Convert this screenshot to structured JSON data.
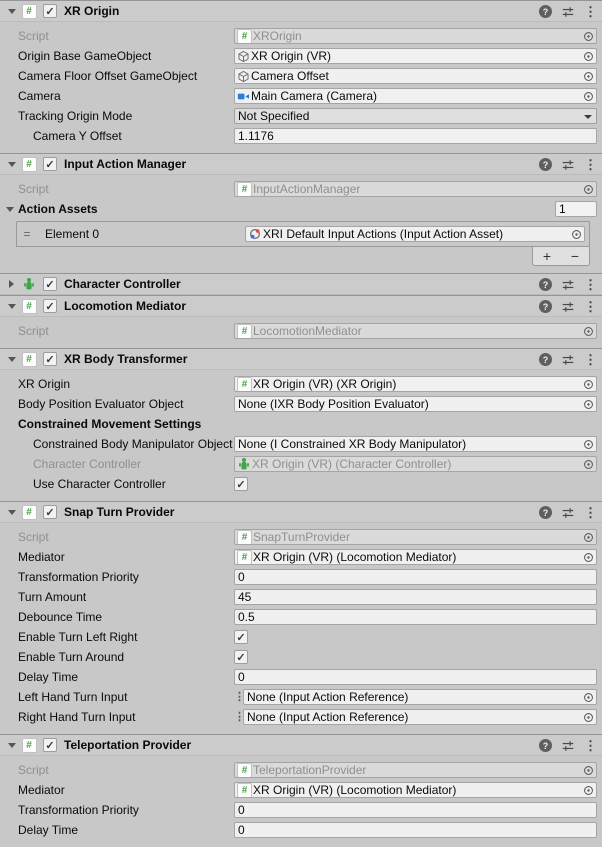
{
  "palette": {
    "background": "#c8c8c8",
    "header": "#cbcbcb",
    "field": "#f0f0f0",
    "script_green": "#4c9e4c",
    "camera_blue": "#2a7dd1",
    "character_green": "#3fa548"
  },
  "header_actions": {
    "help": "?",
    "presets": "presets",
    "menu": "⋮"
  },
  "components": [
    {
      "title": "XR Origin",
      "icon": "script",
      "expanded": true,
      "enabled": true,
      "rows": [
        {
          "type": "object",
          "label": "Script",
          "value": "XROrigin",
          "icon": "script",
          "disabled": true
        },
        {
          "type": "object",
          "label": "Origin Base GameObject",
          "value": "XR Origin (VR)",
          "icon": "gameobject"
        },
        {
          "type": "object",
          "label": "Camera Floor Offset GameObject",
          "value": "Camera Offset",
          "icon": "gameobject"
        },
        {
          "type": "object",
          "label": "Camera",
          "value": "Main Camera (Camera)",
          "icon": "camera"
        },
        {
          "type": "dropdown",
          "label": "Tracking Origin Mode",
          "value": "Not Specified"
        },
        {
          "type": "text",
          "label": "Camera Y Offset",
          "value": "1.1176",
          "indent": true
        }
      ]
    },
    {
      "title": "Input Action Manager",
      "icon": "script",
      "expanded": true,
      "enabled": true,
      "rows": [
        {
          "type": "object",
          "label": "Script",
          "value": "InputActionManager",
          "icon": "script",
          "disabled": true
        },
        {
          "type": "array-header",
          "label": "Action Assets",
          "size": "1"
        },
        {
          "type": "list-element",
          "label": "Element 0",
          "value": "XRI Default Input Actions (Input Action Asset)",
          "icon": "input-asset",
          "handle": "="
        },
        {
          "type": "list-footer",
          "add": "+",
          "remove": "−"
        }
      ]
    },
    {
      "title": "Character Controller",
      "icon": "character",
      "expanded": false,
      "enabled": true,
      "rows": []
    },
    {
      "title": "Locomotion Mediator",
      "icon": "script",
      "expanded": true,
      "enabled": true,
      "rows": [
        {
          "type": "object",
          "label": "Script",
          "value": "LocomotionMediator",
          "icon": "script",
          "disabled": true
        }
      ]
    },
    {
      "title": "XR Body Transformer",
      "icon": "script",
      "expanded": true,
      "enabled": true,
      "rows": [
        {
          "type": "object",
          "label": "XR Origin",
          "value": "XR Origin (VR) (XR Origin)",
          "icon": "script"
        },
        {
          "type": "object",
          "label": "Body Position Evaluator Object",
          "value": "None (IXR Body Position Evaluator)"
        },
        {
          "type": "heading",
          "label": "Constrained Movement Settings"
        },
        {
          "type": "object",
          "label": "Constrained Body Manipulator Object",
          "value": "None (I Constrained XR Body Manipulator)",
          "indent": true
        },
        {
          "type": "object",
          "label": "Character Controller",
          "value": "XR Origin (VR) (Character Controller)",
          "icon": "character",
          "disabled": true,
          "indent": true
        },
        {
          "type": "checkbox",
          "label": "Use Character Controller",
          "checked": true,
          "indent": true
        }
      ]
    },
    {
      "title": "Snap Turn Provider",
      "icon": "script",
      "expanded": true,
      "enabled": true,
      "rows": [
        {
          "type": "object",
          "label": "Script",
          "value": "SnapTurnProvider",
          "icon": "script",
          "disabled": true
        },
        {
          "type": "object",
          "label": "Mediator",
          "value": "XR Origin (VR) (Locomotion Mediator)",
          "icon": "script"
        },
        {
          "type": "text",
          "label": "Transformation Priority",
          "value": "0"
        },
        {
          "type": "text",
          "label": "Turn Amount",
          "value": "45"
        },
        {
          "type": "text",
          "label": "Debounce Time",
          "value": "0.5"
        },
        {
          "type": "checkbox",
          "label": "Enable Turn Left Right",
          "checked": true
        },
        {
          "type": "checkbox",
          "label": "Enable Turn Around",
          "checked": true
        },
        {
          "type": "text",
          "label": "Delay Time",
          "value": "0"
        },
        {
          "type": "object",
          "label": "Left Hand Turn Input",
          "value": "None (Input Action Reference)",
          "prefix": "context-menu"
        },
        {
          "type": "object",
          "label": "Right Hand Turn Input",
          "value": "None (Input Action Reference)",
          "prefix": "context-menu"
        }
      ]
    },
    {
      "title": "Teleportation Provider",
      "icon": "script",
      "expanded": true,
      "enabled": true,
      "rows": [
        {
          "type": "object",
          "label": "Script",
          "value": "TeleportationProvider",
          "icon": "script",
          "disabled": true
        },
        {
          "type": "object",
          "label": "Mediator",
          "value": "XR Origin (VR) (Locomotion Mediator)",
          "icon": "script"
        },
        {
          "type": "text",
          "label": "Transformation Priority",
          "value": "0"
        },
        {
          "type": "text",
          "label": "Delay Time",
          "value": "0"
        }
      ]
    }
  ]
}
